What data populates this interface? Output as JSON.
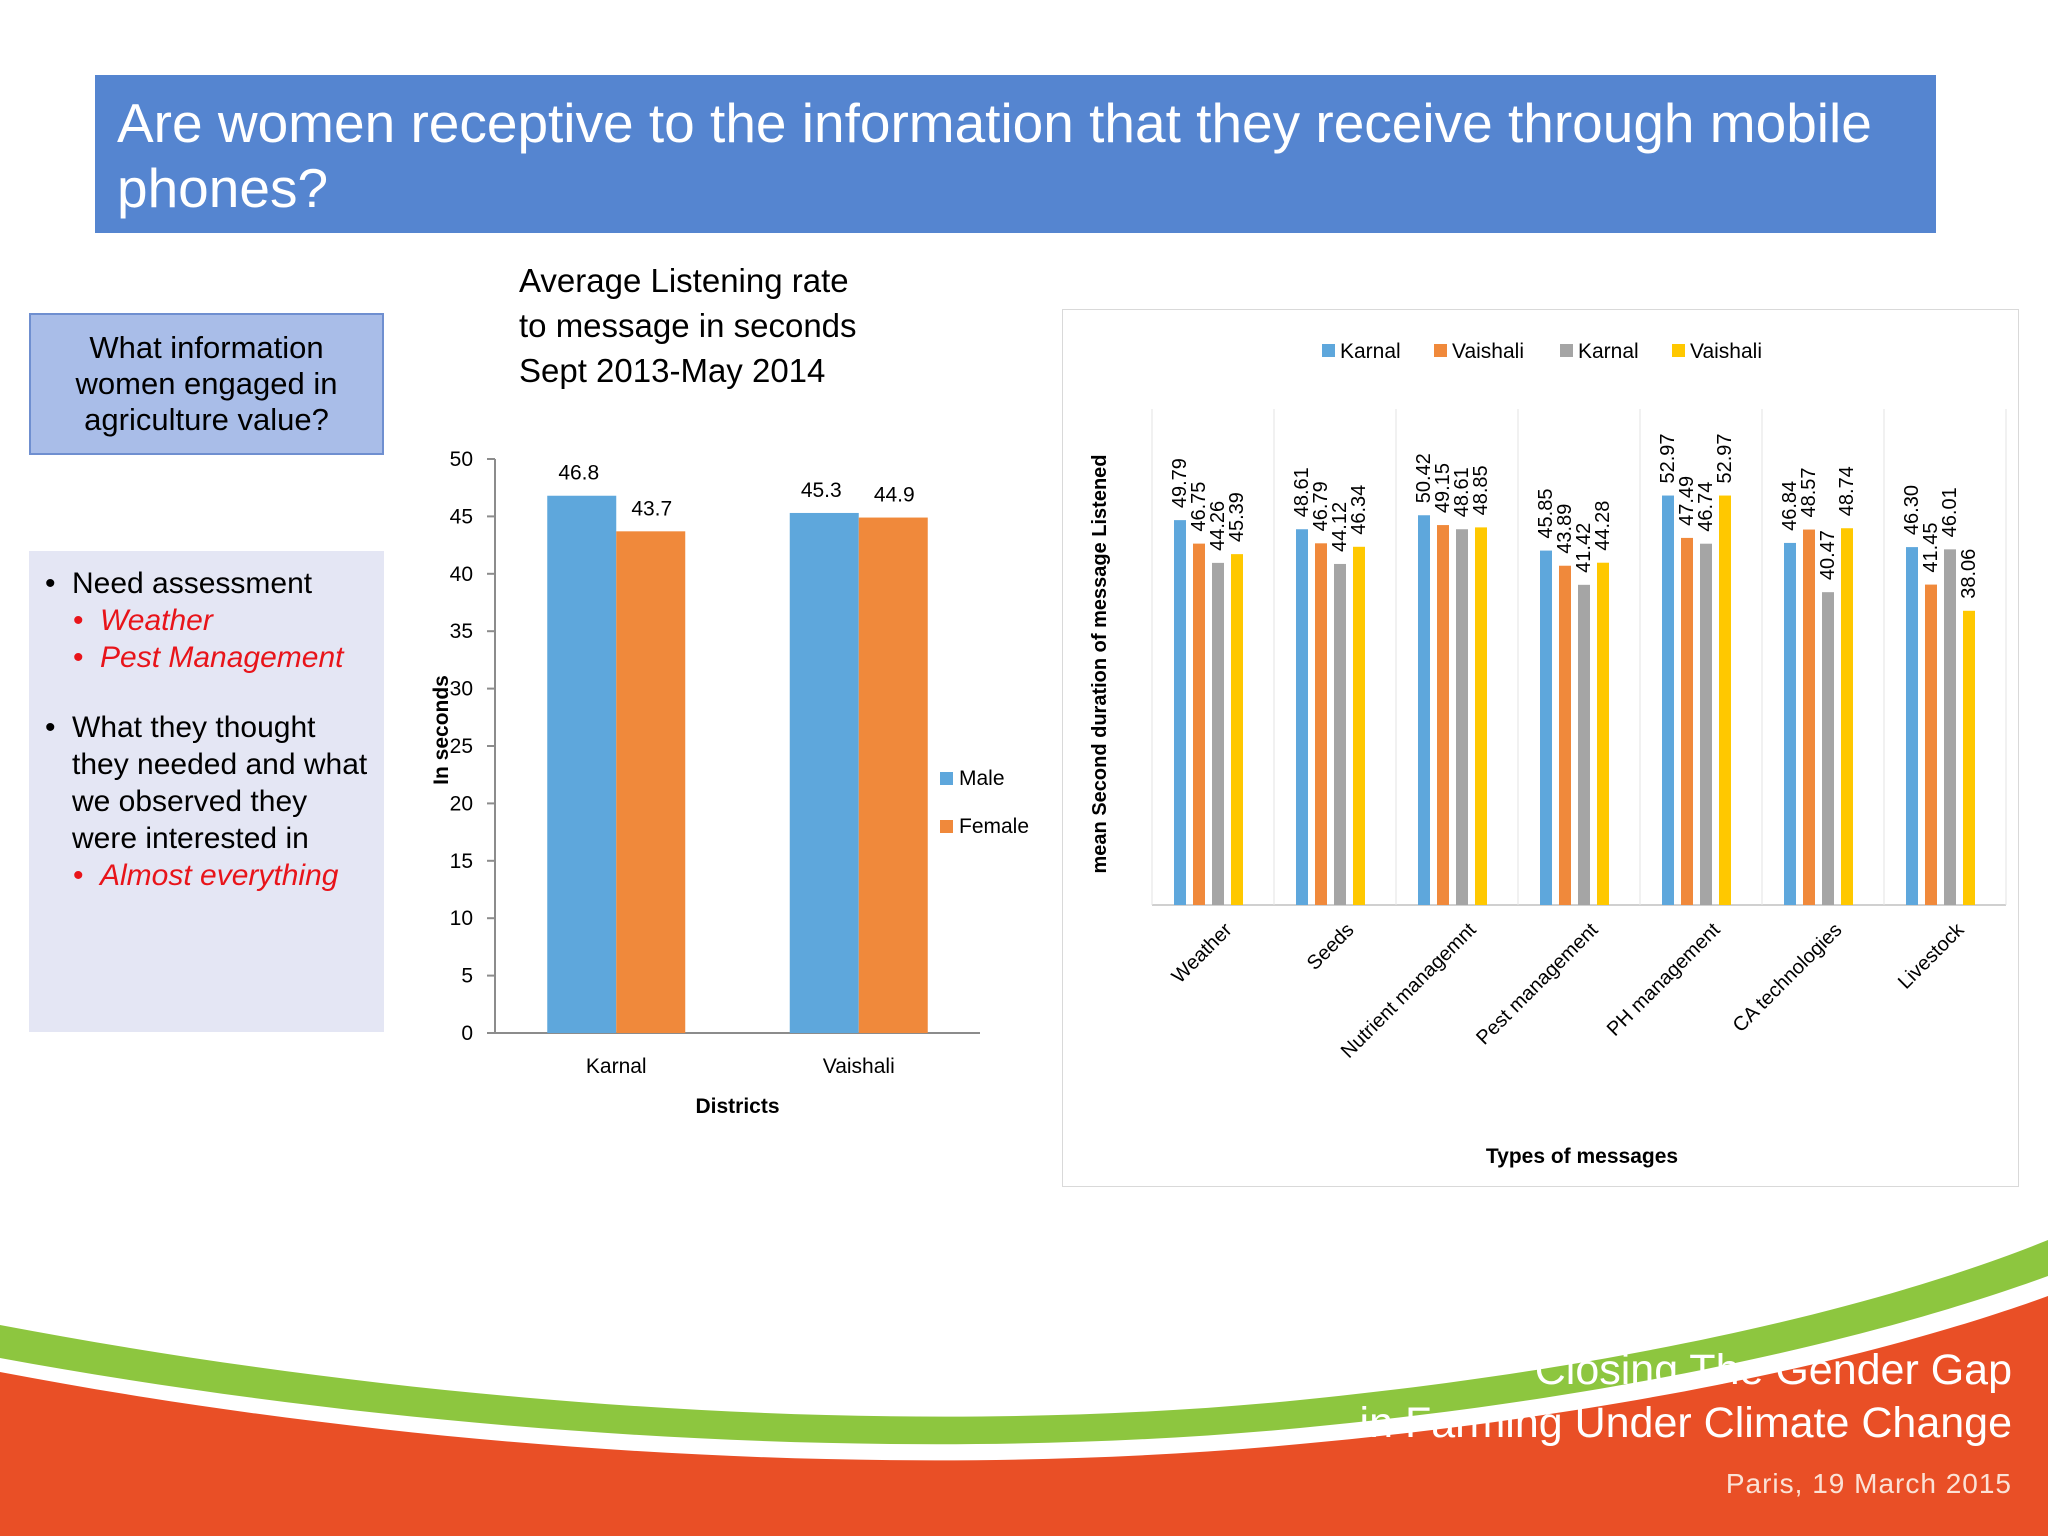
{
  "slide": {
    "title": "Are women receptive to the information that they receive through mobile phones?",
    "question_box": "What information women engaged in agriculture value?",
    "bullets": [
      {
        "text": "Need assessment",
        "sub": [
          "Weather",
          "Pest Management"
        ]
      },
      {
        "text": "What they thought they needed and what we observed they were interested in",
        "sub": [
          "Almost everything"
        ]
      }
    ],
    "footer": {
      "line1": "Closing The Gender Gap",
      "line2": "in Farming Under Climate Change",
      "line3": "Paris, 19 March 2015"
    }
  },
  "colors": {
    "title_bar": "#5585d0",
    "karnal_blue": "#5ea7dc",
    "orange": "#f0893b",
    "grey": "#a5a5a5",
    "yellow": "#ffc800",
    "accent_red": "#e8141a"
  },
  "chart_data": [
    {
      "type": "bar",
      "title": "Average Listening rate to message in seconds Sept 2013-May 2014",
      "title_lines": [
        "Average Listening rate",
        "to message in seconds",
        "Sept 2013-May 2014"
      ],
      "categories": [
        "Karnal",
        "Vaishali"
      ],
      "series": [
        {
          "name": "Male",
          "values": [
            46.8,
            45.3
          ]
        },
        {
          "name": "Female",
          "values": [
            43.7,
            44.9
          ]
        }
      ],
      "xlabel": "Districts",
      "ylabel": "In seconds",
      "ylim": [
        0,
        50
      ],
      "yticks": [
        0,
        5,
        10,
        15,
        20,
        25,
        30,
        35,
        40,
        45,
        50
      ],
      "legend": "right",
      "grid": false
    },
    {
      "type": "bar",
      "categories": [
        "Weather",
        "Seeds",
        "Nutrient managemnt",
        "Pest management",
        "PH management",
        "CA technologies",
        "Livestock"
      ],
      "series": [
        {
          "name": "Karnal",
          "values": [
            49.79,
            48.61,
            50.42,
            45.85,
            52.97,
            46.84,
            46.3
          ]
        },
        {
          "name": "Vaishali",
          "values": [
            46.75,
            46.79,
            49.15,
            43.89,
            47.49,
            48.57,
            41.45
          ]
        },
        {
          "name": "Karnal",
          "values": [
            44.26,
            44.12,
            48.61,
            41.42,
            46.74,
            40.47,
            46.01
          ]
        },
        {
          "name": "Vaishali",
          "values": [
            45.39,
            46.34,
            48.85,
            44.28,
            52.97,
            48.74,
            38.06
          ]
        }
      ],
      "labels": [
        [
          "49.79",
          "48.61",
          "50.42",
          "45.85",
          "52.97",
          "46.84",
          "46.30"
        ],
        [
          "46.75",
          "46.79",
          "49.15",
          "43.89",
          "47.49",
          "48.57",
          "41.45"
        ],
        [
          "44.26",
          "44.12",
          "48.61",
          "41.42",
          "46.74",
          "40.47",
          "46.01"
        ],
        [
          "45.39",
          "46.34",
          "48.85",
          "44.28",
          "52.97",
          "48.74",
          "38.06"
        ]
      ],
      "xlabel": "Types of messages",
      "ylabel": "mean Second duration of message Listened",
      "legend": "top",
      "grid": false
    }
  ]
}
